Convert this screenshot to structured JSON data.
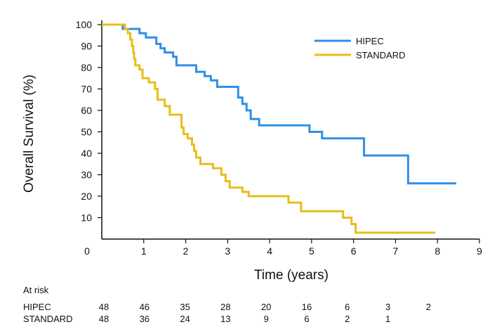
{
  "chart_data": {
    "type": "line",
    "subtype": "kaplan-meier step",
    "title": "",
    "xlabel": "Time (years)",
    "ylabel": "Overall Survival (%)",
    "xlim": [
      0,
      9
    ],
    "ylim": [
      0,
      100
    ],
    "x_ticks": [
      "0",
      "1",
      "2",
      "3",
      "4",
      "5",
      "6",
      "7",
      "8",
      "9"
    ],
    "y_ticks": [
      "10",
      "20",
      "30",
      "40",
      "50",
      "60",
      "70",
      "80",
      "90",
      "100"
    ],
    "grid": false,
    "legend_position": "top-right",
    "series": [
      {
        "name": "HIPEC",
        "color": "#2f8fe8",
        "points": [
          [
            0,
            100
          ],
          [
            0.5,
            100
          ],
          [
            0.5,
            98
          ],
          [
            0.9,
            98
          ],
          [
            0.9,
            96
          ],
          [
            1.05,
            96
          ],
          [
            1.05,
            94
          ],
          [
            1.3,
            94
          ],
          [
            1.3,
            91
          ],
          [
            1.4,
            91
          ],
          [
            1.4,
            89
          ],
          [
            1.5,
            89
          ],
          [
            1.5,
            87
          ],
          [
            1.7,
            87
          ],
          [
            1.7,
            85
          ],
          [
            1.78,
            85
          ],
          [
            1.78,
            81
          ],
          [
            2.25,
            81
          ],
          [
            2.25,
            78
          ],
          [
            2.45,
            78
          ],
          [
            2.45,
            76
          ],
          [
            2.6,
            76
          ],
          [
            2.6,
            74
          ],
          [
            2.75,
            74
          ],
          [
            2.75,
            71
          ],
          [
            3.25,
            71
          ],
          [
            3.25,
            66
          ],
          [
            3.35,
            66
          ],
          [
            3.35,
            63
          ],
          [
            3.45,
            63
          ],
          [
            3.45,
            60
          ],
          [
            3.55,
            60
          ],
          [
            3.55,
            56
          ],
          [
            3.75,
            56
          ],
          [
            3.75,
            53
          ],
          [
            4.95,
            53
          ],
          [
            4.95,
            50
          ],
          [
            5.25,
            50
          ],
          [
            5.25,
            47
          ],
          [
            6.25,
            47
          ],
          [
            6.25,
            39
          ],
          [
            7.3,
            39
          ],
          [
            7.3,
            26
          ],
          [
            8.45,
            26
          ]
        ]
      },
      {
        "name": "STANDARD",
        "color": "#e8bd1a",
        "points": [
          [
            0,
            100
          ],
          [
            0.55,
            100
          ],
          [
            0.55,
            98
          ],
          [
            0.62,
            98
          ],
          [
            0.62,
            96
          ],
          [
            0.68,
            96
          ],
          [
            0.68,
            93
          ],
          [
            0.72,
            93
          ],
          [
            0.72,
            90
          ],
          [
            0.75,
            90
          ],
          [
            0.75,
            87
          ],
          [
            0.77,
            87
          ],
          [
            0.77,
            84
          ],
          [
            0.8,
            84
          ],
          [
            0.8,
            81
          ],
          [
            0.9,
            81
          ],
          [
            0.9,
            79
          ],
          [
            0.97,
            79
          ],
          [
            0.97,
            75
          ],
          [
            1.12,
            75
          ],
          [
            1.12,
            73
          ],
          [
            1.27,
            73
          ],
          [
            1.27,
            70
          ],
          [
            1.33,
            70
          ],
          [
            1.33,
            65
          ],
          [
            1.5,
            65
          ],
          [
            1.5,
            62
          ],
          [
            1.62,
            62
          ],
          [
            1.62,
            58
          ],
          [
            1.9,
            58
          ],
          [
            1.9,
            52
          ],
          [
            1.95,
            52
          ],
          [
            1.95,
            49
          ],
          [
            2.05,
            49
          ],
          [
            2.05,
            47
          ],
          [
            2.15,
            47
          ],
          [
            2.15,
            44
          ],
          [
            2.2,
            44
          ],
          [
            2.2,
            41
          ],
          [
            2.25,
            41
          ],
          [
            2.25,
            38
          ],
          [
            2.35,
            38
          ],
          [
            2.35,
            35
          ],
          [
            2.65,
            35
          ],
          [
            2.65,
            33
          ],
          [
            2.85,
            33
          ],
          [
            2.85,
            30
          ],
          [
            2.95,
            30
          ],
          [
            2.95,
            27
          ],
          [
            3.05,
            27
          ],
          [
            3.05,
            24
          ],
          [
            3.35,
            24
          ],
          [
            3.35,
            22
          ],
          [
            3.5,
            22
          ],
          [
            3.5,
            20
          ],
          [
            4.45,
            20
          ],
          [
            4.45,
            17
          ],
          [
            4.75,
            17
          ],
          [
            4.75,
            13
          ],
          [
            5.75,
            13
          ],
          [
            5.75,
            10
          ],
          [
            5.95,
            10
          ],
          [
            5.95,
            7
          ],
          [
            6.05,
            7
          ],
          [
            6.05,
            3
          ],
          [
            7.95,
            3
          ]
        ]
      }
    ]
  },
  "at_risk": {
    "title": "At risk",
    "times": [
      0,
      1,
      2,
      3,
      4,
      5,
      6,
      7,
      8
    ],
    "rows": [
      {
        "label": "HIPEC",
        "values": [
          "48",
          "46",
          "35",
          "28",
          "20",
          "16",
          "6",
          "3",
          "2"
        ]
      },
      {
        "label": "STANDARD",
        "values": [
          "48",
          "36",
          "24",
          "13",
          "9",
          "6",
          "2",
          "1",
          ""
        ]
      }
    ]
  }
}
